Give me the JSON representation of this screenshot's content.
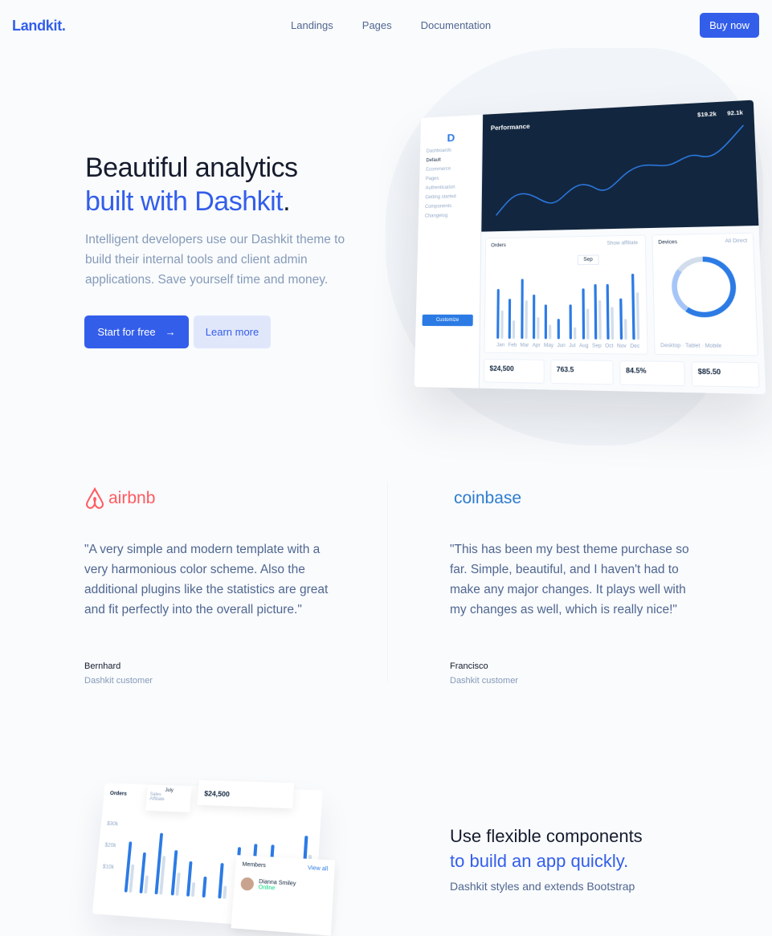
{
  "nav": {
    "logo": "Landkit.",
    "links": [
      "Landings",
      "Pages",
      "Documentation"
    ],
    "buy": "Buy now"
  },
  "hero": {
    "title1": "Beautiful analytics",
    "title2": "built with Dashkit",
    "title_dot": ".",
    "desc": "Intelligent developers use our Dashkit theme to build their internal tools and client admin applications. Save yourself time and money.",
    "primary": "Start for free",
    "secondary": "Learn more"
  },
  "dashboard": {
    "title": "Performance",
    "stats": [
      "$19.2k",
      "92.1k"
    ],
    "sidebar": [
      "Dashboards",
      "Default",
      "Ecommerce",
      "Pages",
      "Authentication",
      "Getting started",
      "Components",
      "Changelog"
    ],
    "customize": "Customize",
    "orders": {
      "title": "Orders",
      "toggle": "Show affiliate",
      "tooltip": "Sep",
      "months": [
        "Jan",
        "Feb",
        "Mar",
        "Apr",
        "May",
        "Jun",
        "Jul",
        "Aug",
        "Sep",
        "Oct",
        "Nov",
        "Dec"
      ],
      "sales": [
        25,
        20,
        30,
        22,
        17,
        10,
        17,
        25,
        27,
        27,
        20,
        32
      ],
      "affiliate": [
        14,
        9,
        19,
        11,
        7,
        0,
        6,
        15,
        19,
        16,
        10,
        23
      ]
    },
    "devices": {
      "title": "Devices",
      "tabs": [
        "All",
        "Direct"
      ],
      "legend": [
        "Desktop",
        "Tablet",
        "Mobile"
      ]
    },
    "kpis": [
      "$24,500",
      "763.5",
      "84.5%",
      "$85.50"
    ]
  },
  "testimonials": [
    {
      "brand": "airbnb",
      "color": "#ff5a5f",
      "quote": "\"A very simple and modern template with a very harmonious color scheme. Also the additional plugins like the statistics are great and fit perfectly into the overall picture.\"",
      "name": "Bernhard",
      "role": "Dashkit customer"
    },
    {
      "brand": "coinbase",
      "color": "#2e7cd0",
      "quote": "\"This has been my best theme purchase so far. Simple, beautiful, and I haven't had to make any major changes. It plays well with my changes as well, which is really nice!\"",
      "name": "Francisco",
      "role": "Dashkit customer"
    }
  ],
  "mock2": {
    "orders": "Orders",
    "tooltip": "July",
    "sales": "Sales",
    "affiliate": "Affiliate",
    "kpi": "$24,500",
    "yticks": [
      "$30k",
      "$20k",
      "$10k"
    ],
    "members": "Members",
    "view_all": "View all",
    "member": "Dianna Smiley",
    "status": "Online"
  },
  "features": {
    "title1": "Use flexible components",
    "title2": "to build an app quickly.",
    "desc": "Dashkit styles and extends Bootstrap"
  }
}
